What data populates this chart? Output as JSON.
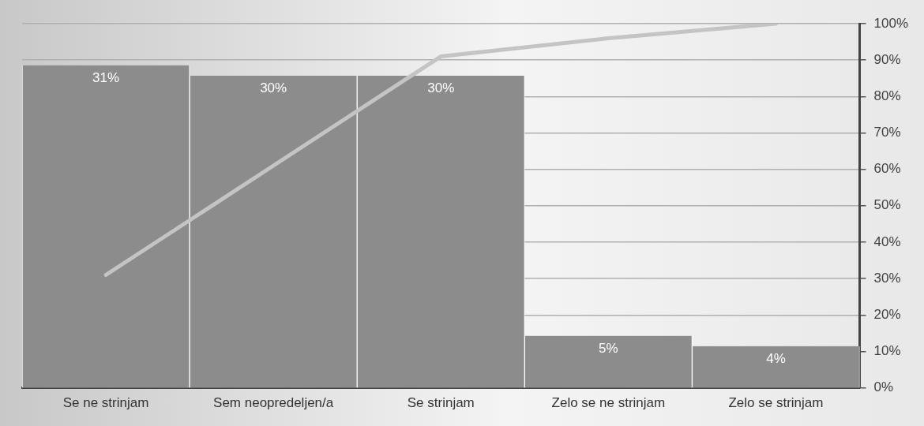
{
  "chart_data": {
    "type": "bar",
    "categories": [
      "Se ne strinjam",
      "Sem neopredeljen/a",
      "Se strinjam",
      "Zelo se ne strinjam",
      "Zelo se strinjam"
    ],
    "series": [
      {
        "color": "#8c8c8c",
        "values": [
          31,
          30,
          30,
          5,
          4
        ],
        "value_labels": [
          "31%",
          "30%",
          "30%",
          "5%",
          "4%"
        ]
      },
      {
        "type": "line",
        "axis": "y2",
        "color": "#c4c4c4",
        "values": [
          31,
          61,
          91,
          96,
          100
        ],
        "marker": "none"
      }
    ],
    "ylim": [
      0,
      35
    ],
    "y2lim": [
      0,
      100
    ],
    "y2ticks": [
      {
        "value": 0,
        "label": "0%"
      },
      {
        "value": 10,
        "label": "10%"
      },
      {
        "value": 20,
        "label": "20%"
      },
      {
        "value": 30,
        "label": "30%"
      },
      {
        "value": 40,
        "label": "40%"
      },
      {
        "value": 50,
        "label": "50%"
      },
      {
        "value": 60,
        "label": "60%"
      },
      {
        "value": 70,
        "label": "70%"
      },
      {
        "value": 80,
        "label": "80%"
      },
      {
        "value": 90,
        "label": "90%"
      },
      {
        "value": 100,
        "label": "100%"
      }
    ],
    "grid": "y",
    "legend": false
  }
}
